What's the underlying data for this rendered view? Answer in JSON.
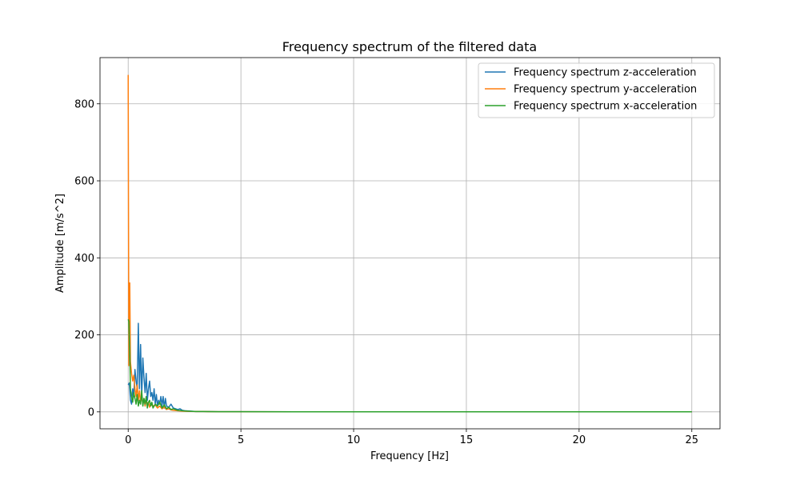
{
  "chart_data": {
    "type": "line",
    "title": "Frequency spectrum of the filtered data",
    "xlabel": "Frequency [Hz]",
    "ylabel": "Amplitude [m/s^2]",
    "xlim": [
      -1.25,
      26.25
    ],
    "ylim": [
      -44,
      920
    ],
    "xticks": [
      0,
      5,
      10,
      15,
      20,
      25
    ],
    "xtick_labels": [
      "0",
      "5",
      "10",
      "15",
      "20",
      "25"
    ],
    "yticks": [
      0,
      200,
      400,
      600,
      800
    ],
    "ytick_labels": [
      "0",
      "200",
      "400",
      "600",
      "800"
    ],
    "grid": true,
    "legend_position": "top-right",
    "series": [
      {
        "name": "Frequency spectrum z-acceleration",
        "color": "#1f77b4",
        "x": [
          0,
          0.05,
          0.1,
          0.15,
          0.2,
          0.25,
          0.3,
          0.35,
          0.4,
          0.45,
          0.5,
          0.55,
          0.6,
          0.65,
          0.7,
          0.75,
          0.8,
          0.85,
          0.9,
          0.95,
          1.0,
          1.05,
          1.1,
          1.15,
          1.2,
          1.25,
          1.3,
          1.35,
          1.4,
          1.45,
          1.5,
          1.55,
          1.6,
          1.65,
          1.7,
          1.8,
          1.9,
          2.0,
          2.1,
          2.2,
          2.3,
          2.4,
          2.5,
          2.75,
          3.0,
          3.5,
          4.0,
          5.0,
          7.5,
          10,
          12.5,
          15,
          17.5,
          20,
          22.5,
          25
        ],
        "y": [
          70,
          75,
          30,
          20,
          60,
          40,
          110,
          80,
          60,
          230,
          60,
          175,
          40,
          140,
          90,
          50,
          100,
          30,
          60,
          80,
          40,
          50,
          30,
          60,
          20,
          45,
          15,
          30,
          20,
          40,
          15,
          40,
          10,
          35,
          15,
          12,
          20,
          10,
          8,
          6,
          8,
          4,
          3,
          2,
          1,
          1,
          0.5,
          0.3,
          0.2,
          0.2,
          0.2,
          0.2,
          0.2,
          0.2,
          0.2,
          0.2
        ]
      },
      {
        "name": "Frequency spectrum y-acceleration",
        "color": "#ff7f0e",
        "x": [
          0,
          0.03,
          0.07,
          0.1,
          0.15,
          0.2,
          0.25,
          0.3,
          0.35,
          0.4,
          0.45,
          0.5,
          0.55,
          0.6,
          0.65,
          0.7,
          0.75,
          0.8,
          0.85,
          0.9,
          0.95,
          1.0,
          1.1,
          1.2,
          1.3,
          1.4,
          1.5,
          1.6,
          1.7,
          1.8,
          1.9,
          2.0,
          2.2,
          2.4,
          2.6,
          3.0,
          3.5,
          4.0,
          5.0,
          7.5,
          10,
          12.5,
          15,
          17.5,
          20,
          22.5,
          25
        ],
        "y": [
          875,
          120,
          335,
          130,
          100,
          80,
          95,
          60,
          40,
          70,
          30,
          55,
          25,
          40,
          20,
          35,
          15,
          30,
          20,
          25,
          12,
          20,
          15,
          18,
          10,
          15,
          8,
          12,
          6,
          8,
          5,
          4,
          3,
          2,
          1.5,
          1,
          0.8,
          0.5,
          0.3,
          0.2,
          0.2,
          0.2,
          0.2,
          0.2,
          0.2,
          0.2,
          0.2
        ]
      },
      {
        "name": "Frequency spectrum x-acceleration",
        "color": "#2ca02c",
        "x": [
          0,
          0.03,
          0.07,
          0.1,
          0.15,
          0.2,
          0.25,
          0.3,
          0.35,
          0.4,
          0.45,
          0.5,
          0.55,
          0.6,
          0.65,
          0.7,
          0.75,
          0.8,
          0.85,
          0.9,
          0.95,
          1.0,
          1.05,
          1.1,
          1.2,
          1.3,
          1.4,
          1.5,
          1.6,
          1.7,
          1.8,
          1.9,
          2.0,
          2.2,
          2.4,
          2.6,
          3.0,
          3.5,
          4.0,
          5.0,
          7.5,
          10,
          12.5,
          15,
          17.5,
          20,
          22.5,
          25
        ],
        "y": [
          240,
          235,
          150,
          60,
          40,
          25,
          50,
          35,
          20,
          45,
          15,
          30,
          20,
          55,
          15,
          35,
          20,
          40,
          10,
          25,
          30,
          15,
          25,
          10,
          20,
          15,
          25,
          10,
          18,
          8,
          12,
          6,
          8,
          4,
          3,
          2,
          1,
          0.8,
          0.5,
          0.3,
          0.2,
          0.2,
          0.2,
          0.2,
          0.2,
          0.2,
          0.2,
          0.2
        ]
      }
    ]
  }
}
